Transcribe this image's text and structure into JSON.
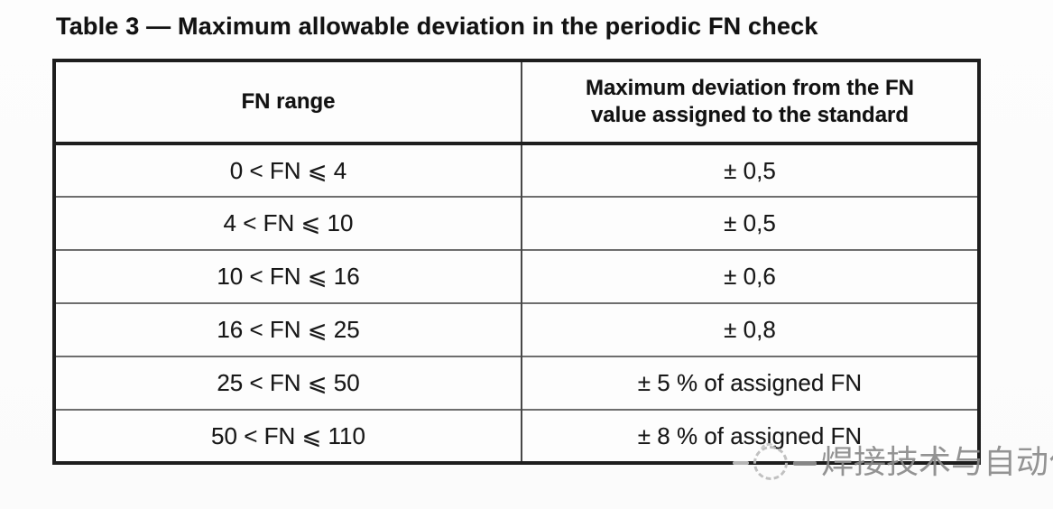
{
  "caption": "Table 3 — Maximum allowable deviation in the periodic FN check",
  "table": {
    "headers": [
      "FN range",
      "Maximum deviation from the FN\nvalue assigned to the standard"
    ],
    "rows": [
      {
        "range": "0 < FN ⩽ 4",
        "deviation": "± 0,5"
      },
      {
        "range": "4 < FN ⩽ 10",
        "deviation": "± 0,5"
      },
      {
        "range": "10 < FN ⩽ 16",
        "deviation": "± 0,6"
      },
      {
        "range": "16 < FN ⩽ 25",
        "deviation": "± 0,8"
      },
      {
        "range": "25 < FN ⩽ 50",
        "deviation": "± 5 % of assigned FN"
      },
      {
        "range": "50 < FN ⩽ 110",
        "deviation": "± 8 % of assigned FN"
      }
    ]
  },
  "watermark": {
    "text": "焊接技术与自动化",
    "logo": "dashed-circle-logo",
    "text_color": "#8b8b8b"
  },
  "colors": {
    "outer_border": "#1e1e1e",
    "row_separator": "#6e6e6e",
    "column_divider": "#474747",
    "body_text": "#181818",
    "paper": "#fdfdfd"
  }
}
